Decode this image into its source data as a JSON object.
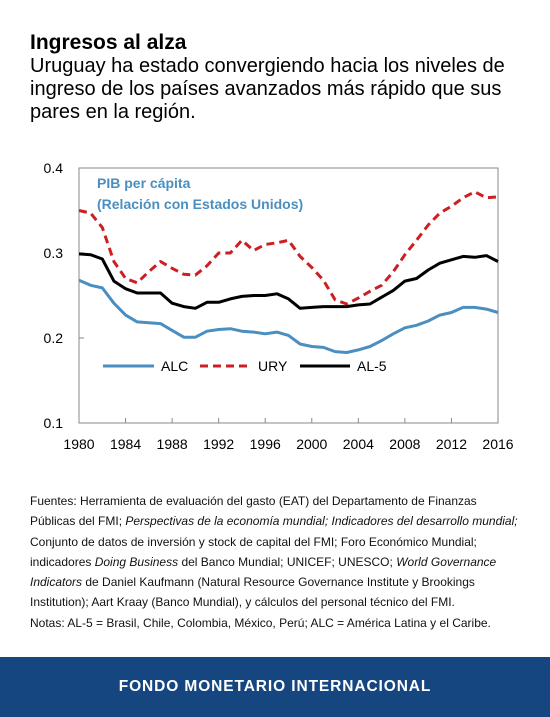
{
  "title": "Ingresos al alza",
  "subtitle": "Uruguay ha estado convergiendo hacia los niveles de ingreso de los países avanzados más rápido que sus pares en la región.",
  "chart_data": {
    "type": "line",
    "annotation_line1": "PIB per cápita",
    "annotation_line2": "(Relación con Estados Unidos)",
    "annotation_color": "#4a8fc0",
    "xlim": [
      1980,
      2016
    ],
    "ylim": [
      0.1,
      0.4
    ],
    "x_ticks": [
      "1980",
      "1984",
      "1988",
      "1992",
      "1996",
      "2000",
      "2004",
      "2008",
      "2012",
      "2016"
    ],
    "x_tick_values": [
      1980,
      1984,
      1988,
      1992,
      1996,
      2000,
      2004,
      2008,
      2012,
      2016
    ],
    "y_ticks": [
      "0.1",
      "0.2",
      "0.3",
      "0.4"
    ],
    "y_tick_values": [
      0.1,
      0.2,
      0.3,
      0.4
    ],
    "grid": false,
    "legend_position": "bottom-left",
    "x": [
      1980,
      1981,
      1982,
      1983,
      1984,
      1985,
      1986,
      1987,
      1988,
      1989,
      1990,
      1991,
      1992,
      1993,
      1994,
      1995,
      1996,
      1997,
      1998,
      1999,
      2000,
      2001,
      2002,
      2003,
      2004,
      2005,
      2006,
      2007,
      2008,
      2009,
      2010,
      2011,
      2012,
      2013,
      2014,
      2015,
      2016
    ],
    "series": [
      {
        "name": "ALC",
        "color": "#4a8fc0",
        "style": "solid",
        "values": [
          0.268,
          0.262,
          0.259,
          0.241,
          0.227,
          0.219,
          0.218,
          0.217,
          0.209,
          0.201,
          0.201,
          0.208,
          0.21,
          0.211,
          0.208,
          0.207,
          0.205,
          0.207,
          0.203,
          0.193,
          0.19,
          0.189,
          0.184,
          0.183,
          0.186,
          0.19,
          0.197,
          0.205,
          0.212,
          0.215,
          0.22,
          0.227,
          0.23,
          0.236,
          0.236,
          0.234,
          0.23
        ]
      },
      {
        "name": "URY",
        "color": "#cc1f24",
        "style": "dashed",
        "values": [
          0.35,
          0.347,
          0.33,
          0.29,
          0.27,
          0.265,
          0.278,
          0.29,
          0.282,
          0.275,
          0.274,
          0.285,
          0.3,
          0.3,
          0.315,
          0.303,
          0.31,
          0.312,
          0.315,
          0.296,
          0.283,
          0.268,
          0.245,
          0.24,
          0.247,
          0.255,
          0.262,
          0.278,
          0.298,
          0.315,
          0.333,
          0.347,
          0.355,
          0.365,
          0.372,
          0.365,
          0.366
        ]
      },
      {
        "name": "AL-5",
        "color": "#000000",
        "style": "solid",
        "values": [
          0.299,
          0.298,
          0.293,
          0.267,
          0.258,
          0.253,
          0.253,
          0.253,
          0.241,
          0.237,
          0.235,
          0.242,
          0.242,
          0.246,
          0.249,
          0.25,
          0.25,
          0.252,
          0.246,
          0.235,
          0.236,
          0.237,
          0.237,
          0.237,
          0.239,
          0.24,
          0.248,
          0.256,
          0.267,
          0.27,
          0.28,
          0.288,
          0.292,
          0.296,
          0.295,
          0.297,
          0.29
        ]
      }
    ]
  },
  "sources": {
    "p1_a": "Fuentes: Herramienta de evaluación del gasto (EAT) del Departamento de Finanzas Públicas del FMI; ",
    "p1_b": "Perspectivas de la economía mundial; Indicadores del desarrollo mundial;",
    "p1_c": " Conjunto de datos de inversión y stock de capital del FMI; Foro Económico Mundial; indicadores ",
    "p1_d": "Doing Business",
    "p1_e": " del Banco Mundial; UNICEF; UNESCO; ",
    "p1_f": "World Governance Indicators",
    "p1_g": " de Daniel Kaufmann (Natural Resource Governance Institute y Brookings Institution); Aart Kraay (Banco Mundial), y cálculos del personal técnico del FMI.",
    "notes": "Notas: AL-5 = Brasil, Chile, Colombia, México, Perú; ALC = América Latina y el Caribe."
  },
  "footer": {
    "label": "FONDO MONETARIO INTERNACIONAL",
    "color": "#16467f"
  }
}
